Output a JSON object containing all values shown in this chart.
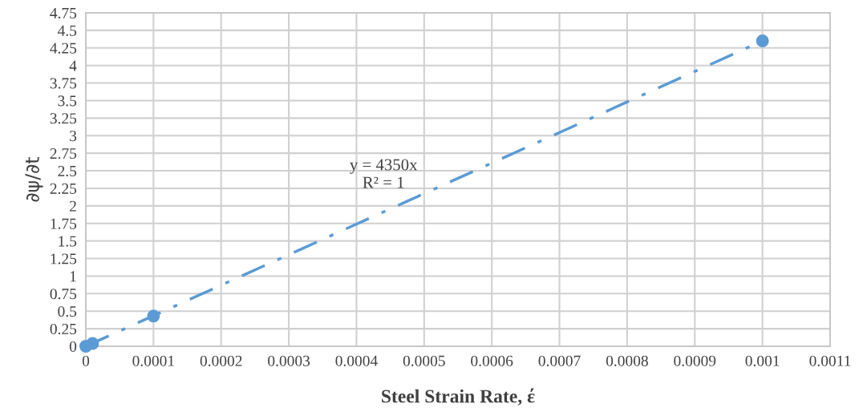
{
  "chart_data": {
    "type": "scatter",
    "xlabel": "Steel Strain Rate, έ",
    "ylabel": "∂ψ/∂t",
    "series": [
      {
        "type": "scatter",
        "color": "#5b9bd5",
        "x": [
          0,
          1e-05,
          0.0001,
          0.001
        ],
        "values": [
          0,
          0.04,
          0.43,
          4.35
        ],
        "marker": "circle"
      },
      {
        "type": "line",
        "color": "#5b9bd5",
        "x": [
          0,
          0.001
        ],
        "values": [
          0,
          4.35
        ],
        "line_style": "dashed"
      }
    ],
    "annotations": [
      "y = 4350x",
      "R² = 1"
    ],
    "xlim": [
      0,
      0.0011
    ],
    "xticks": [
      0,
      0.0001,
      0.0002,
      0.0003,
      0.0004,
      0.0005,
      0.0006,
      0.0007,
      0.0008,
      0.0009,
      0.001,
      0.0011
    ],
    "ylim": [
      0,
      4.75
    ],
    "yticks": [
      0,
      0.25,
      0.5,
      0.75,
      1,
      1.25,
      1.5,
      1.75,
      2,
      2.25,
      2.5,
      2.75,
      3,
      3.25,
      3.5,
      3.75,
      4,
      4.25,
      4.5,
      4.75
    ],
    "grid": true,
    "legend": false
  }
}
